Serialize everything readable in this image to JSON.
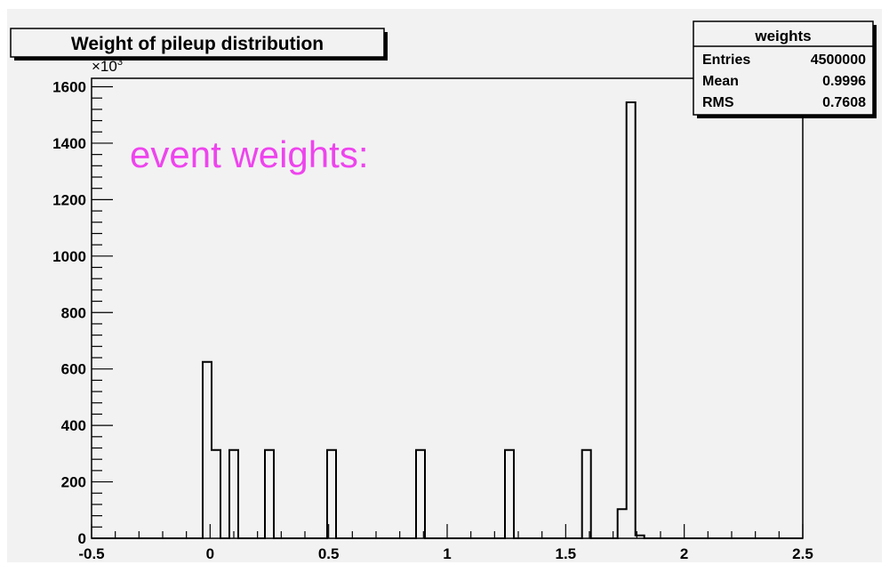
{
  "chart_data": {
    "type": "bar",
    "title": "Weight of pileup distribution",
    "annotation": "event weights:",
    "exponent_label": "×10",
    "exponent_power": "3",
    "xlabel": "",
    "ylabel": "",
    "xlim": [
      -0.5,
      2.5
    ],
    "ylim": [
      0,
      1630
    ],
    "bin_width": 0.0375,
    "x_ticks": [
      -0.5,
      0,
      0.5,
      1,
      1.5,
      2,
      2.5
    ],
    "x_tick_labels": [
      "-0.5",
      "0",
      "0.5",
      "1",
      "1.5",
      "2",
      "2.5"
    ],
    "y_ticks": [
      0,
      200,
      400,
      600,
      800,
      1000,
      1200,
      1400,
      1600
    ],
    "y_tick_labels": [
      "0",
      "200",
      "400",
      "600",
      "800",
      "1000",
      "1200",
      "1400",
      "1600"
    ],
    "bins": [
      {
        "x": -0.0125,
        "value": 625
      },
      {
        "x": 0.025,
        "value": 313
      },
      {
        "x": 0.1,
        "value": 313
      },
      {
        "x": 0.25,
        "value": 313
      },
      {
        "x": 0.5125,
        "value": 313
      },
      {
        "x": 0.8875,
        "value": 313
      },
      {
        "x": 1.2625,
        "value": 313
      },
      {
        "x": 1.5875,
        "value": 313
      },
      {
        "x": 1.7375,
        "value": 103
      },
      {
        "x": 1.775,
        "value": 1545
      },
      {
        "x": 1.8125,
        "value": 10
      }
    ],
    "stats": {
      "name": "weights",
      "rows": [
        {
          "label": "Entries",
          "value": "4500000"
        },
        {
          "label": "Mean",
          "value": "0.9996"
        },
        {
          "label": "RMS",
          "value": "0.7608"
        }
      ]
    },
    "colors": {
      "frame_bg": "#f2f2f2",
      "plot_bg": "#f2f2f2",
      "line": "#000000",
      "annotation": "#ee44ee"
    }
  }
}
